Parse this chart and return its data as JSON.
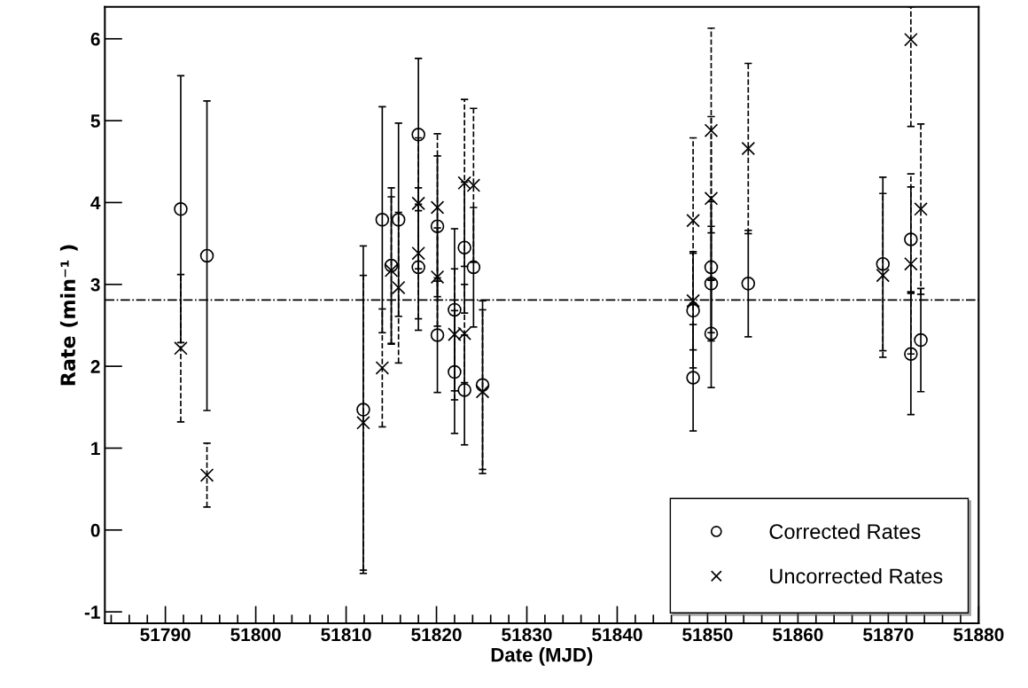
{
  "chart_data": {
    "type": "scatter",
    "xlabel": "Date (MJD)",
    "ylabel": "Rate (min⁻¹ )",
    "xlim": [
      51783.3,
      51880
    ],
    "xticks": [
      51790,
      51800,
      51810,
      51820,
      51830,
      51840,
      51850,
      51860,
      51870,
      51880
    ],
    "ylim": [
      -1.14,
      6.39
    ],
    "yticks": [
      -1,
      0,
      1,
      2,
      3,
      4,
      5,
      6
    ],
    "grid": false,
    "legend": "lower right",
    "ref_lines": [
      {
        "axis": "y",
        "value": 2.81,
        "color": "#000000"
      }
    ],
    "series": [
      {
        "name": "Corrected Rates",
        "color": "#000000",
        "marker": "circle",
        "line_style": "solid",
        "x": [
          51791.7,
          51794.6,
          51811.9,
          51814.0,
          51815.0,
          51815.8,
          51818.0,
          51818.0,
          51820.1,
          51820.1,
          51822.0,
          51822.0,
          51823.1,
          51823.1,
          51824.1,
          51825.1,
          51848.4,
          51848.4,
          51850.4,
          51850.4,
          51850.4,
          51854.5,
          51869.4,
          51872.5,
          51872.5,
          51873.6
        ],
        "values": [
          3.92,
          3.35,
          1.47,
          3.79,
          3.23,
          3.79,
          4.83,
          3.21,
          3.71,
          2.38,
          2.69,
          1.93,
          3.45,
          1.71,
          3.21,
          1.77,
          2.68,
          1.86,
          3.21,
          3.01,
          2.4,
          3.01,
          3.25,
          3.55,
          2.15,
          2.32
        ],
        "errors": [
          1.63,
          1.89,
          2.0,
          1.38,
          0.95,
          1.18,
          0.93,
          0.77,
          0.86,
          0.7,
          0.99,
          0.75,
          0.8,
          0.67,
          0.73,
          1.03,
          0.7,
          0.65,
          0.8,
          0.7,
          0.66,
          0.65,
          1.06,
          0.64,
          0.74,
          0.63
        ]
      },
      {
        "name": "Uncorrected Rates",
        "color": "#000000",
        "marker": "cross",
        "line_style": "dashed",
        "x": [
          51791.7,
          51794.6,
          51811.9,
          51814.0,
          51815.0,
          51815.8,
          51818.0,
          51818.0,
          51820.1,
          51820.1,
          51822.0,
          51823.1,
          51823.1,
          51824.1,
          51825.1,
          51848.4,
          51848.4,
          51850.4,
          51850.4,
          51854.5,
          51869.4,
          51872.5,
          51872.5,
          51873.6
        ],
        "values": [
          2.22,
          0.67,
          1.31,
          1.98,
          3.17,
          2.96,
          3.99,
          3.38,
          3.94,
          3.09,
          2.39,
          4.24,
          2.4,
          4.21,
          1.69,
          3.78,
          2.8,
          4.88,
          4.05,
          4.66,
          3.11,
          5.99,
          3.25,
          3.92
        ],
        "errors": [
          0.9,
          0.39,
          1.8,
          0.72,
          0.9,
          0.92,
          0.8,
          0.8,
          0.9,
          0.6,
          0.8,
          1.02,
          0.6,
          0.94,
          1.0,
          1.01,
          0.6,
          1.25,
          1.0,
          1.04,
          1.0,
          [
            4.93,
            6.39
          ],
          1.1,
          1.04
        ]
      }
    ]
  }
}
